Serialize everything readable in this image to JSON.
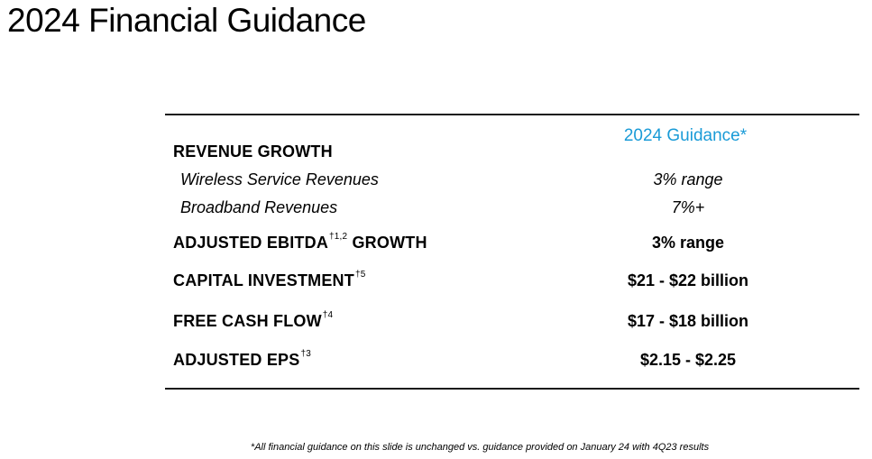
{
  "title": "2024 Financial Guidance",
  "column_header": "2024 Guidance*",
  "rows": [
    {
      "label": "REVENUE GROWTH",
      "superscript": "",
      "suffix": "",
      "value": ""
    },
    {
      "label": "Wireless Service Revenues",
      "superscript": "",
      "suffix": "",
      "value": "3% range"
    },
    {
      "label": "Broadband Revenues",
      "superscript": "",
      "suffix": "",
      "value": "7%+"
    },
    {
      "label": "ADJUSTED EBITDA",
      "superscript": "†1,2",
      "suffix": " GROWTH",
      "value": "3% range"
    },
    {
      "label": "CAPITAL INVESTMENT",
      "superscript": "†5",
      "suffix": "",
      "value": "$21 - $22 billion"
    },
    {
      "label": "FREE CASH FLOW",
      "superscript": "†4",
      "suffix": "",
      "value": "$17 - $18 billion"
    },
    {
      "label": "ADJUSTED EPS",
      "superscript": "†3",
      "suffix": "",
      "value": "$2.15 - $2.25"
    }
  ],
  "footnote": "*All financial guidance on this slide is unchanged vs. guidance provided on January 24 with 4Q23 results",
  "colors": {
    "accent": "#1a9bd7",
    "text": "#000000",
    "rule": "#1a1a1a"
  }
}
